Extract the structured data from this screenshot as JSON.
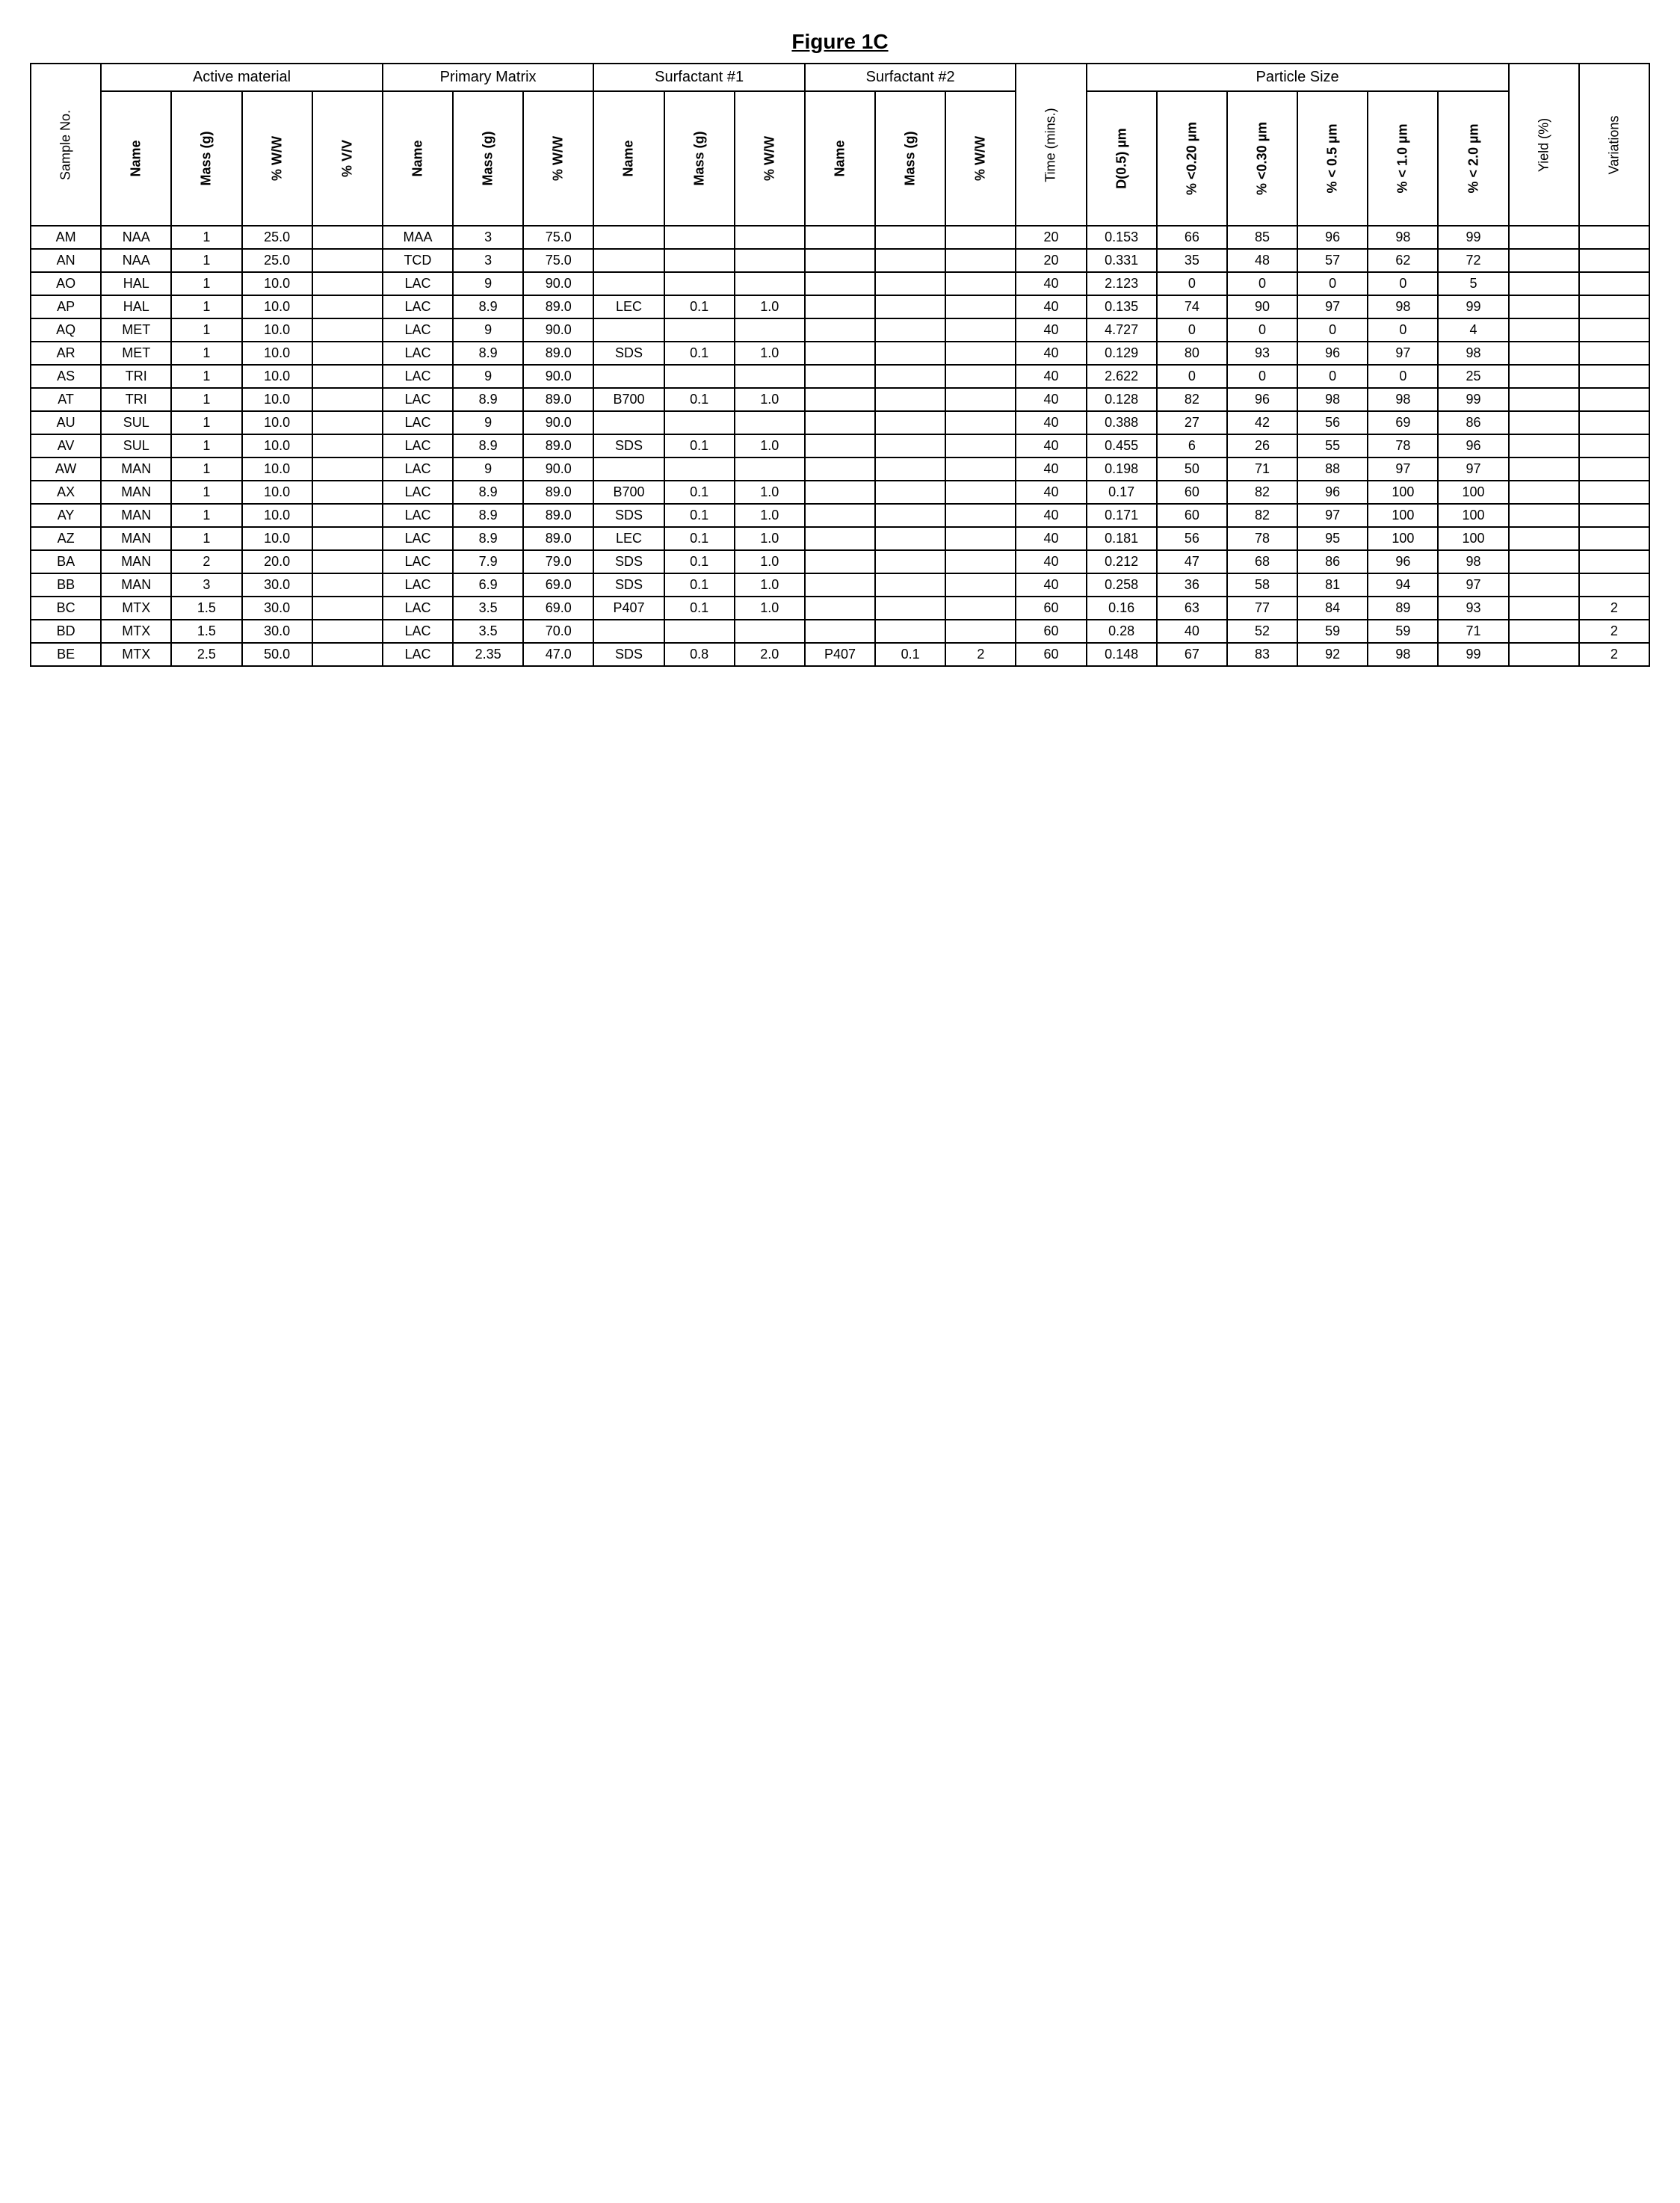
{
  "title": "Figure 1C",
  "groups": [
    {
      "label": "Sample No.",
      "span": 1,
      "rotated": true
    },
    {
      "label": "Active material",
      "span": 4
    },
    {
      "label": "Primary Matrix",
      "span": 3
    },
    {
      "label": "Surfactant #1",
      "span": 3
    },
    {
      "label": "Surfactant #2",
      "span": 3
    },
    {
      "label": "Time (mins.)",
      "span": 1,
      "rotated": true
    },
    {
      "label": "Particle Size",
      "span": 6
    },
    {
      "label": "Yield (%)",
      "span": 1,
      "rotated": true
    },
    {
      "label": "Variations",
      "span": 1,
      "rotated": true
    }
  ],
  "subheaders": [
    "Name",
    "Mass (g)",
    "% W/W",
    "% V/V",
    "Name",
    "Mass (g)",
    "% W/W",
    "Name",
    "Mass (g)",
    "% W/W",
    "Name",
    "Mass (g)",
    "% W/W",
    "D(0.5) µm",
    "% <0.20 µm",
    "% <0.30 µm",
    "% < 0.5 µm",
    "% < 1.0 µm",
    "% < 2.0 µm"
  ],
  "rows": [
    {
      "id": "AM",
      "am_name": "NAA",
      "am_mass": "1",
      "am_ww": "25.0",
      "am_vv": "",
      "pm_name": "MAA",
      "pm_mass": "3",
      "pm_ww": "75.0",
      "s1_name": "",
      "s1_mass": "",
      "s1_ww": "",
      "s2_name": "",
      "s2_mass": "",
      "s2_ww": "",
      "time": "20",
      "d05": "0.153",
      "p020": "66",
      "p030": "85",
      "p05": "96",
      "p10": "98",
      "p20": "99",
      "yield": "",
      "var": ""
    },
    {
      "id": "AN",
      "am_name": "NAA",
      "am_mass": "1",
      "am_ww": "25.0",
      "am_vv": "",
      "pm_name": "TCD",
      "pm_mass": "3",
      "pm_ww": "75.0",
      "s1_name": "",
      "s1_mass": "",
      "s1_ww": "",
      "s2_name": "",
      "s2_mass": "",
      "s2_ww": "",
      "time": "20",
      "d05": "0.331",
      "p020": "35",
      "p030": "48",
      "p05": "57",
      "p10": "62",
      "p20": "72",
      "yield": "",
      "var": ""
    },
    {
      "id": "AO",
      "am_name": "HAL",
      "am_mass": "1",
      "am_ww": "10.0",
      "am_vv": "",
      "pm_name": "LAC",
      "pm_mass": "9",
      "pm_ww": "90.0",
      "s1_name": "",
      "s1_mass": "",
      "s1_ww": "",
      "s2_name": "",
      "s2_mass": "",
      "s2_ww": "",
      "time": "40",
      "d05": "2.123",
      "p020": "0",
      "p030": "0",
      "p05": "0",
      "p10": "0",
      "p20": "5",
      "yield": "",
      "var": ""
    },
    {
      "id": "AP",
      "am_name": "HAL",
      "am_mass": "1",
      "am_ww": "10.0",
      "am_vv": "",
      "pm_name": "LAC",
      "pm_mass": "8.9",
      "pm_ww": "89.0",
      "s1_name": "LEC",
      "s1_mass": "0.1",
      "s1_ww": "1.0",
      "s2_name": "",
      "s2_mass": "",
      "s2_ww": "",
      "time": "40",
      "d05": "0.135",
      "p020": "74",
      "p030": "90",
      "p05": "97",
      "p10": "98",
      "p20": "99",
      "yield": "",
      "var": ""
    },
    {
      "id": "AQ",
      "am_name": "MET",
      "am_mass": "1",
      "am_ww": "10.0",
      "am_vv": "",
      "pm_name": "LAC",
      "pm_mass": "9",
      "pm_ww": "90.0",
      "s1_name": "",
      "s1_mass": "",
      "s1_ww": "",
      "s2_name": "",
      "s2_mass": "",
      "s2_ww": "",
      "time": "40",
      "d05": "4.727",
      "p020": "0",
      "p030": "0",
      "p05": "0",
      "p10": "0",
      "p20": "4",
      "yield": "",
      "var": ""
    },
    {
      "id": "AR",
      "am_name": "MET",
      "am_mass": "1",
      "am_ww": "10.0",
      "am_vv": "",
      "pm_name": "LAC",
      "pm_mass": "8.9",
      "pm_ww": "89.0",
      "s1_name": "SDS",
      "s1_mass": "0.1",
      "s1_ww": "1.0",
      "s2_name": "",
      "s2_mass": "",
      "s2_ww": "",
      "time": "40",
      "d05": "0.129",
      "p020": "80",
      "p030": "93",
      "p05": "96",
      "p10": "97",
      "p20": "98",
      "yield": "",
      "var": ""
    },
    {
      "id": "AS",
      "am_name": "TRI",
      "am_mass": "1",
      "am_ww": "10.0",
      "am_vv": "",
      "pm_name": "LAC",
      "pm_mass": "9",
      "pm_ww": "90.0",
      "s1_name": "",
      "s1_mass": "",
      "s1_ww": "",
      "s2_name": "",
      "s2_mass": "",
      "s2_ww": "",
      "time": "40",
      "d05": "2.622",
      "p020": "0",
      "p030": "0",
      "p05": "0",
      "p10": "0",
      "p20": "25",
      "yield": "",
      "var": ""
    },
    {
      "id": "AT",
      "am_name": "TRI",
      "am_mass": "1",
      "am_ww": "10.0",
      "am_vv": "",
      "pm_name": "LAC",
      "pm_mass": "8.9",
      "pm_ww": "89.0",
      "s1_name": "B700",
      "s1_mass": "0.1",
      "s1_ww": "1.0",
      "s2_name": "",
      "s2_mass": "",
      "s2_ww": "",
      "time": "40",
      "d05": "0.128",
      "p020": "82",
      "p030": "96",
      "p05": "98",
      "p10": "98",
      "p20": "99",
      "yield": "",
      "var": ""
    },
    {
      "id": "AU",
      "am_name": "SUL",
      "am_mass": "1",
      "am_ww": "10.0",
      "am_vv": "",
      "pm_name": "LAC",
      "pm_mass": "9",
      "pm_ww": "90.0",
      "s1_name": "",
      "s1_mass": "",
      "s1_ww": "",
      "s2_name": "",
      "s2_mass": "",
      "s2_ww": "",
      "time": "40",
      "d05": "0.388",
      "p020": "27",
      "p030": "42",
      "p05": "56",
      "p10": "69",
      "p20": "86",
      "yield": "",
      "var": ""
    },
    {
      "id": "AV",
      "am_name": "SUL",
      "am_mass": "1",
      "am_ww": "10.0",
      "am_vv": "",
      "pm_name": "LAC",
      "pm_mass": "8.9",
      "pm_ww": "89.0",
      "s1_name": "SDS",
      "s1_mass": "0.1",
      "s1_ww": "1.0",
      "s2_name": "",
      "s2_mass": "",
      "s2_ww": "",
      "time": "40",
      "d05": "0.455",
      "p020": "6",
      "p030": "26",
      "p05": "55",
      "p10": "78",
      "p20": "96",
      "yield": "",
      "var": ""
    },
    {
      "id": "AW",
      "am_name": "MAN",
      "am_mass": "1",
      "am_ww": "10.0",
      "am_vv": "",
      "pm_name": "LAC",
      "pm_mass": "9",
      "pm_ww": "90.0",
      "s1_name": "",
      "s1_mass": "",
      "s1_ww": "",
      "s2_name": "",
      "s2_mass": "",
      "s2_ww": "",
      "time": "40",
      "d05": "0.198",
      "p020": "50",
      "p030": "71",
      "p05": "88",
      "p10": "97",
      "p20": "97",
      "yield": "",
      "var": ""
    },
    {
      "id": "AX",
      "am_name": "MAN",
      "am_mass": "1",
      "am_ww": "10.0",
      "am_vv": "",
      "pm_name": "LAC",
      "pm_mass": "8.9",
      "pm_ww": "89.0",
      "s1_name": "B700",
      "s1_mass": "0.1",
      "s1_ww": "1.0",
      "s2_name": "",
      "s2_mass": "",
      "s2_ww": "",
      "time": "40",
      "d05": "0.17",
      "p020": "60",
      "p030": "82",
      "p05": "96",
      "p10": "100",
      "p20": "100",
      "yield": "",
      "var": ""
    },
    {
      "id": "AY",
      "am_name": "MAN",
      "am_mass": "1",
      "am_ww": "10.0",
      "am_vv": "",
      "pm_name": "LAC",
      "pm_mass": "8.9",
      "pm_ww": "89.0",
      "s1_name": "SDS",
      "s1_mass": "0.1",
      "s1_ww": "1.0",
      "s2_name": "",
      "s2_mass": "",
      "s2_ww": "",
      "time": "40",
      "d05": "0.171",
      "p020": "60",
      "p030": "82",
      "p05": "97",
      "p10": "100",
      "p20": "100",
      "yield": "",
      "var": ""
    },
    {
      "id": "AZ",
      "am_name": "MAN",
      "am_mass": "1",
      "am_ww": "10.0",
      "am_vv": "",
      "pm_name": "LAC",
      "pm_mass": "8.9",
      "pm_ww": "89.0",
      "s1_name": "LEC",
      "s1_mass": "0.1",
      "s1_ww": "1.0",
      "s2_name": "",
      "s2_mass": "",
      "s2_ww": "",
      "time": "40",
      "d05": "0.181",
      "p020": "56",
      "p030": "78",
      "p05": "95",
      "p10": "100",
      "p20": "100",
      "yield": "",
      "var": ""
    },
    {
      "id": "BA",
      "am_name": "MAN",
      "am_mass": "2",
      "am_ww": "20.0",
      "am_vv": "",
      "pm_name": "LAC",
      "pm_mass": "7.9",
      "pm_ww": "79.0",
      "s1_name": "SDS",
      "s1_mass": "0.1",
      "s1_ww": "1.0",
      "s2_name": "",
      "s2_mass": "",
      "s2_ww": "",
      "time": "40",
      "d05": "0.212",
      "p020": "47",
      "p030": "68",
      "p05": "86",
      "p10": "96",
      "p20": "98",
      "yield": "",
      "var": ""
    },
    {
      "id": "BB",
      "am_name": "MAN",
      "am_mass": "3",
      "am_ww": "30.0",
      "am_vv": "",
      "pm_name": "LAC",
      "pm_mass": "6.9",
      "pm_ww": "69.0",
      "s1_name": "SDS",
      "s1_mass": "0.1",
      "s1_ww": "1.0",
      "s2_name": "",
      "s2_mass": "",
      "s2_ww": "",
      "time": "40",
      "d05": "0.258",
      "p020": "36",
      "p030": "58",
      "p05": "81",
      "p10": "94",
      "p20": "97",
      "yield": "",
      "var": ""
    },
    {
      "id": "BC",
      "am_name": "MTX",
      "am_mass": "1.5",
      "am_ww": "30.0",
      "am_vv": "",
      "pm_name": "LAC",
      "pm_mass": "3.5",
      "pm_ww": "69.0",
      "s1_name": "P407",
      "s1_mass": "0.1",
      "s1_ww": "1.0",
      "s2_name": "",
      "s2_mass": "",
      "s2_ww": "",
      "time": "60",
      "d05": "0.16",
      "p020": "63",
      "p030": "77",
      "p05": "84",
      "p10": "89",
      "p20": "93",
      "yield": "",
      "var": "2"
    },
    {
      "id": "BD",
      "am_name": "MTX",
      "am_mass": "1.5",
      "am_ww": "30.0",
      "am_vv": "",
      "pm_name": "LAC",
      "pm_mass": "3.5",
      "pm_ww": "70.0",
      "s1_name": "",
      "s1_mass": "",
      "s1_ww": "",
      "s2_name": "",
      "s2_mass": "",
      "s2_ww": "",
      "time": "60",
      "d05": "0.28",
      "p020": "40",
      "p030": "52",
      "p05": "59",
      "p10": "59",
      "p20": "71",
      "yield": "",
      "var": "2"
    },
    {
      "id": "BE",
      "am_name": "MTX",
      "am_mass": "2.5",
      "am_ww": "50.0",
      "am_vv": "",
      "pm_name": "LAC",
      "pm_mass": "2.35",
      "pm_ww": "47.0",
      "s1_name": "SDS",
      "s1_mass": "0.8",
      "s1_ww": "2.0",
      "s2_name": "P407",
      "s2_mass": "0.1",
      "s2_ww": "2",
      "time": "60",
      "d05": "0.148",
      "p020": "67",
      "p030": "83",
      "p05": "92",
      "p10": "98",
      "p20": "99",
      "yield": "",
      "var": "2"
    }
  ]
}
